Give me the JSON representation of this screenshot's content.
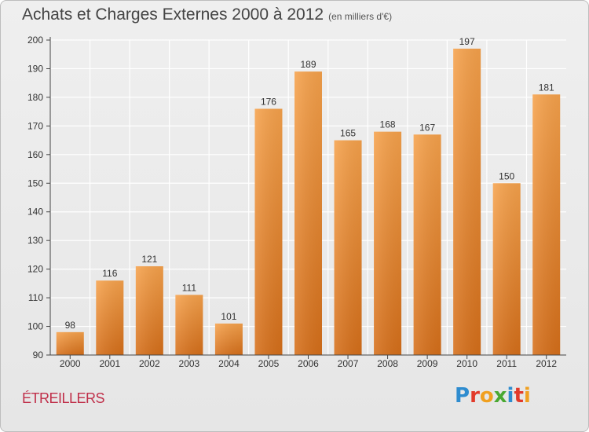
{
  "header": {
    "title": "Achats et Charges Externes 2000 à 2012",
    "subtitle": "(en milliers d'€)"
  },
  "commune": "ÉTREILLERS",
  "logo": {
    "text": "Proxiti",
    "letters": [
      {
        "ch": "P",
        "color": "#2e8ccf"
      },
      {
        "ch": "r",
        "color": "#e23a2a"
      },
      {
        "ch": "o",
        "color": "#f0a020"
      },
      {
        "ch": "x",
        "color": "#4aa832"
      },
      {
        "ch": "i",
        "color": "#2e8ccf"
      },
      {
        "ch": "t",
        "color": "#e23a2a"
      },
      {
        "ch": "i",
        "color": "#f0a020"
      }
    ]
  },
  "chart_data": {
    "type": "bar",
    "title": "Achats et Charges Externes 2000 à 2012",
    "subtitle": "(en milliers d'€)",
    "categories": [
      "2000",
      "2001",
      "2002",
      "2003",
      "2004",
      "2005",
      "2006",
      "2007",
      "2008",
      "2009",
      "2010",
      "2011",
      "2012"
    ],
    "values": [
      98,
      116,
      121,
      111,
      101,
      176,
      189,
      165,
      168,
      167,
      197,
      150,
      181
    ],
    "ylim": [
      90,
      200
    ],
    "yticks": [
      90,
      100,
      110,
      120,
      130,
      140,
      150,
      160,
      170,
      180,
      190,
      200
    ],
    "xlabel": "",
    "ylabel": "",
    "grid": true,
    "colors": {
      "bar_top": "#f6a24c",
      "bar_bottom": "#d66f1a",
      "grid": "#ffffff",
      "axis": "#444444"
    }
  }
}
